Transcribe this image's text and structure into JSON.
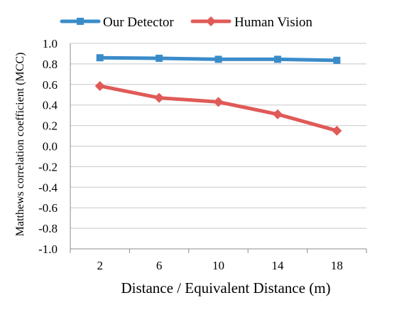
{
  "chart_data": {
    "type": "line",
    "categories": [
      "2",
      "6",
      "10",
      "14",
      "18"
    ],
    "xlabel": "Distance / Equivalent Distance (m)",
    "ylabel": "Matthews correlation coefficient (MCC)",
    "ylim": [
      -1.0,
      1.0
    ],
    "ystep": 0.2,
    "yticks": [
      "-1.0",
      "-0.8",
      "-0.6",
      "-0.4",
      "-0.2",
      "0.0",
      "0.2",
      "0.4",
      "0.6",
      "0.8",
      "1.0"
    ],
    "grid": true,
    "legend_position": "top",
    "series": [
      {
        "name": "Our Detector",
        "values": [
          0.86,
          0.855,
          0.845,
          0.845,
          0.835
        ],
        "color": "#3a8cc9",
        "marker": "square"
      },
      {
        "name": "Human Vision",
        "values": [
          0.585,
          0.47,
          0.43,
          0.31,
          0.15
        ],
        "color": "#e05a57",
        "marker": "diamond"
      }
    ]
  }
}
